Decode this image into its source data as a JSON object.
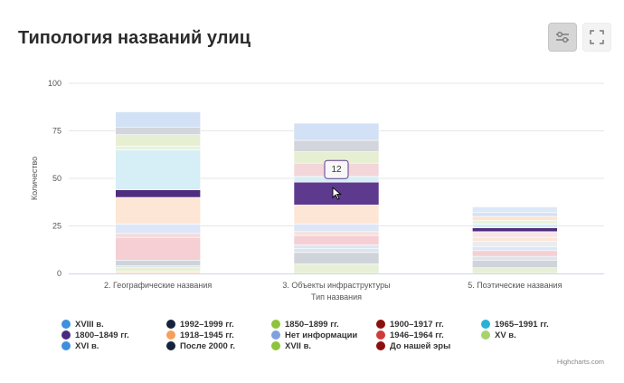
{
  "header": {
    "title": "Типология названий улиц"
  },
  "toolbar": {
    "settings_icon": "sliders-icon",
    "fullscreen_icon": "fullscreen-icon"
  },
  "credits": "Highcharts.com",
  "tooltip": {
    "value": "12"
  },
  "colors": {
    "grid": "#e6e6e6",
    "axis": "#ccd6eb"
  },
  "legend": [
    {
      "label": "XVIII в.",
      "color": "#3e8fde"
    },
    {
      "label": "1992–1999 гг.",
      "color": "#15233d"
    },
    {
      "label": "1850–1899 гг.",
      "color": "#8fc43a"
    },
    {
      "label": "1900–1917 гг.",
      "color": "#8c0f0f"
    },
    {
      "label": "1965–1991 гг.",
      "color": "#27b2d6"
    },
    {
      "label": "1800–1849 гг.",
      "color": "#4b2a82"
    },
    {
      "label": "1918–1945 гг.",
      "color": "#f5a05a"
    },
    {
      "label": "Нет информации",
      "color": "#7fa2dd"
    },
    {
      "label": "1946–1964 гг.",
      "color": "#d13a3a"
    },
    {
      "label": "XV в.",
      "color": "#a6d36c"
    },
    {
      "label": "XVI в.",
      "color": "#3e8fde"
    },
    {
      "label": "После 2000 г.",
      "color": "#15233d"
    },
    {
      "label": "XVII в.",
      "color": "#8fc43a"
    },
    {
      "label": "До нашей эры",
      "color": "#8c0f0f"
    }
  ],
  "chart_data": {
    "type": "bar",
    "stacked": true,
    "title": "Типология названий улиц",
    "xlabel": "Тип названия",
    "ylabel": "Количество",
    "ylim": [
      0,
      100
    ],
    "yticks": [
      0,
      25,
      50,
      75,
      100
    ],
    "categories": [
      "2. Географические названия",
      "3. Объекты инфраструктуры",
      "5. Поэтические названия"
    ],
    "highlight": {
      "category": 1,
      "segment": 8
    },
    "stacks": [
      [
        {
          "value": 1,
          "color": "#fbe5cf"
        },
        {
          "value": 2,
          "color": "#e7efd6"
        },
        {
          "value": 1,
          "color": "#dfe3ea"
        },
        {
          "value": 3,
          "color": "#cfd3da"
        },
        {
          "value": 12,
          "color": "#f5cfd3"
        },
        {
          "value": 2,
          "color": "#f6d9dc"
        },
        {
          "value": 5,
          "color": "#dce6f6"
        },
        {
          "value": 14,
          "color": "#fde6d5"
        },
        {
          "value": 4,
          "color": "#4f2d7f"
        },
        {
          "value": 21,
          "color": "#d6eef5"
        },
        {
          "value": 2,
          "color": "#e9f3dc"
        },
        {
          "value": 6,
          "color": "#e7efd2"
        },
        {
          "value": 4,
          "color": "#d2d5db"
        },
        {
          "value": 8,
          "color": "#d2e1f6"
        }
      ],
      [
        {
          "value": 5,
          "color": "#e7efd6"
        },
        {
          "value": 6,
          "color": "#cfd3da"
        },
        {
          "value": 2,
          "color": "#dfe3ea"
        },
        {
          "value": 2,
          "color": "#d9e6f6"
        },
        {
          "value": 5,
          "color": "#f5cfd3"
        },
        {
          "value": 2,
          "color": "#f6e0df"
        },
        {
          "value": 4,
          "color": "#dce6f6"
        },
        {
          "value": 10,
          "color": "#fde6d5"
        },
        {
          "value": 12,
          "color": "#5e3a8f"
        },
        {
          "value": 3,
          "color": "#d6eef5"
        },
        {
          "value": 7,
          "color": "#f3d6d9"
        },
        {
          "value": 6,
          "color": "#e7efd2"
        },
        {
          "value": 6,
          "color": "#d2d5db"
        },
        {
          "value": 9,
          "color": "#d2e1f6"
        }
      ],
      [
        {
          "value": 3,
          "color": "#e7efd6"
        },
        {
          "value": 4,
          "color": "#cfd3da"
        },
        {
          "value": 2,
          "color": "#dfe3ea"
        },
        {
          "value": 3,
          "color": "#f5cfd3"
        },
        {
          "value": 2,
          "color": "#dce6f6"
        },
        {
          "value": 3,
          "color": "#eaecf1"
        },
        {
          "value": 2,
          "color": "#fde6d5"
        },
        {
          "value": 3,
          "color": "#f6e6ea"
        },
        {
          "value": 2,
          "color": "#4f2d7f"
        },
        {
          "value": 2,
          "color": "#d6eef5"
        },
        {
          "value": 2,
          "color": "#e9f3dc"
        },
        {
          "value": 2,
          "color": "#fde3d0"
        },
        {
          "value": 2,
          "color": "#d2e1f6"
        },
        {
          "value": 3,
          "color": "#dde8f7"
        }
      ]
    ]
  }
}
